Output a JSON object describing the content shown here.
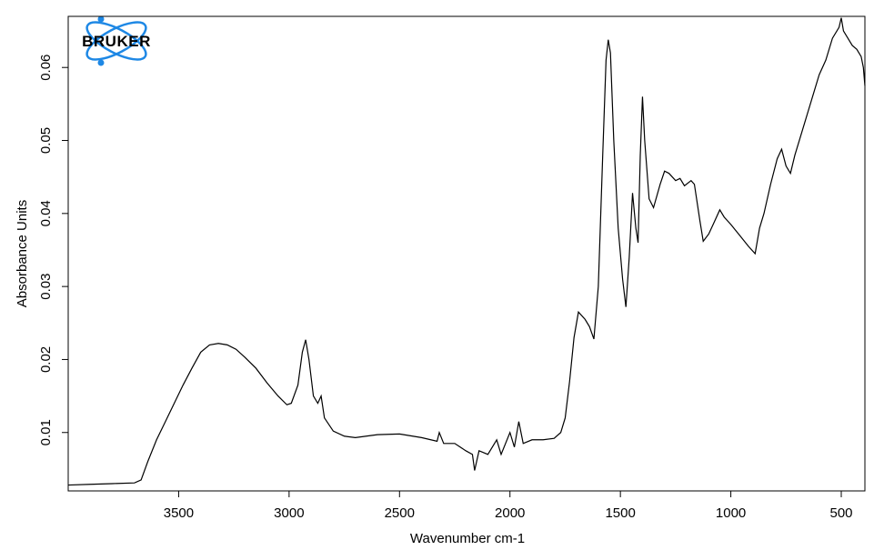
{
  "logo_text": "BRUKER",
  "chart_data": {
    "type": "line",
    "x_label": "Wavenumber cm-1",
    "y_label": "Absorbance Units",
    "xlim": [
      4000,
      393
    ],
    "ylim": [
      0.002,
      0.067
    ],
    "xticks": [
      3500,
      3000,
      2500,
      2000,
      1500,
      1000,
      500
    ],
    "yticks": [
      0.01,
      0.02,
      0.03,
      0.04,
      0.05,
      0.06
    ],
    "series": [
      {
        "color": "#000000",
        "x": [
          4000,
          3900,
          3800,
          3700,
          3670,
          3640,
          3600,
          3560,
          3520,
          3480,
          3440,
          3400,
          3360,
          3320,
          3280,
          3240,
          3200,
          3150,
          3100,
          3050,
          3010,
          2990,
          2960,
          2940,
          2925,
          2910,
          2890,
          2870,
          2855,
          2840,
          2800,
          2750,
          2700,
          2600,
          2500,
          2400,
          2330,
          2320,
          2300,
          2250,
          2200,
          2170,
          2160,
          2140,
          2100,
          2060,
          2040,
          2000,
          1980,
          1960,
          1940,
          1900,
          1850,
          1800,
          1770,
          1750,
          1730,
          1710,
          1690,
          1660,
          1640,
          1620,
          1600,
          1580,
          1565,
          1555,
          1545,
          1530,
          1510,
          1490,
          1475,
          1460,
          1445,
          1430,
          1420,
          1410,
          1400,
          1390,
          1370,
          1350,
          1320,
          1300,
          1280,
          1250,
          1230,
          1210,
          1180,
          1165,
          1140,
          1125,
          1100,
          1080,
          1050,
          1030,
          1000,
          960,
          920,
          890,
          870,
          850,
          820,
          790,
          770,
          750,
          730,
          710,
          690,
          660,
          630,
          600,
          570,
          540,
          510,
          500,
          490,
          470,
          450,
          430,
          410,
          400,
          393
        ],
        "values": [
          0.0028,
          0.0029,
          0.003,
          0.0031,
          0.0035,
          0.006,
          0.009,
          0.0115,
          0.014,
          0.0165,
          0.0188,
          0.021,
          0.022,
          0.0222,
          0.022,
          0.0214,
          0.0203,
          0.0188,
          0.0168,
          0.015,
          0.0138,
          0.014,
          0.0165,
          0.021,
          0.0227,
          0.02,
          0.015,
          0.014,
          0.015,
          0.012,
          0.0102,
          0.0095,
          0.0093,
          0.0097,
          0.0098,
          0.0093,
          0.0088,
          0.01,
          0.0085,
          0.0085,
          0.0075,
          0.007,
          0.0048,
          0.0075,
          0.007,
          0.009,
          0.007,
          0.01,
          0.008,
          0.0115,
          0.0085,
          0.009,
          0.009,
          0.0092,
          0.01,
          0.012,
          0.017,
          0.023,
          0.0265,
          0.0255,
          0.0245,
          0.0228,
          0.03,
          0.048,
          0.061,
          0.0638,
          0.062,
          0.05,
          0.038,
          0.031,
          0.0272,
          0.034,
          0.0428,
          0.038,
          0.036,
          0.048,
          0.056,
          0.05,
          0.042,
          0.0408,
          0.044,
          0.0458,
          0.0455,
          0.0445,
          0.0448,
          0.0438,
          0.0445,
          0.044,
          0.039,
          0.0362,
          0.0372,
          0.0385,
          0.0405,
          0.0395,
          0.0385,
          0.037,
          0.0355,
          0.0345,
          0.038,
          0.04,
          0.044,
          0.0475,
          0.0488,
          0.0465,
          0.0455,
          0.048,
          0.05,
          0.053,
          0.056,
          0.059,
          0.061,
          0.064,
          0.0655,
          0.0668,
          0.065,
          0.064,
          0.063,
          0.0625,
          0.0615,
          0.06,
          0.0575
        ]
      }
    ]
  }
}
